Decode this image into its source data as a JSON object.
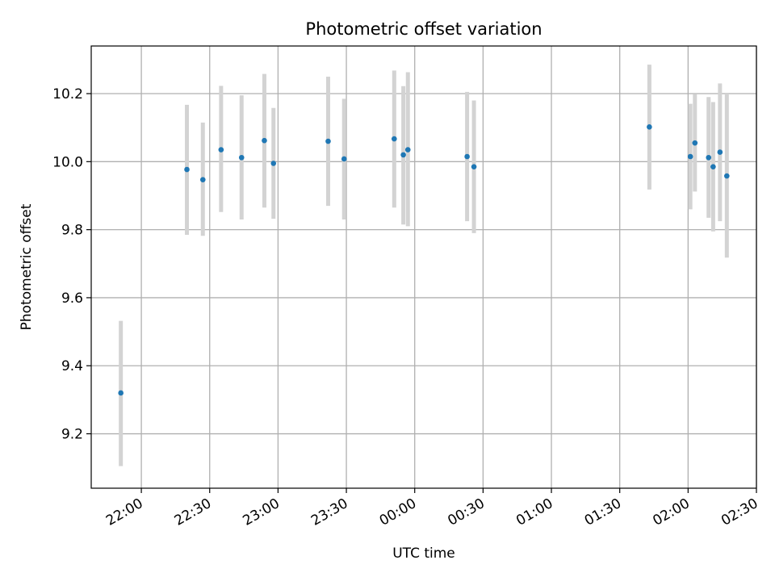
{
  "chart_data": {
    "type": "scatter",
    "title": "Photometric offset variation",
    "xlabel": "UTC time",
    "ylabel": "Photometric offset",
    "grid": true,
    "xlim": [
      "21:38",
      "02:30"
    ],
    "ylim": [
      9.04,
      10.34
    ],
    "x_ticks": [
      "22:00",
      "22:30",
      "23:00",
      "23:30",
      "00:00",
      "00:30",
      "01:00",
      "01:30",
      "02:00",
      "02:30"
    ],
    "y_ticks": [
      "9.2",
      "9.4",
      "9.6",
      "9.8",
      "10.0",
      "10.2"
    ],
    "colors": {
      "point": "#1f77b4",
      "errorbar": "#d3d3d3",
      "grid": "#b0b0b0"
    },
    "points": [
      {
        "x": "21:51",
        "y": 9.32,
        "ylow": 9.105,
        "yhigh": 9.532
      },
      {
        "x": "22:20",
        "y": 9.977,
        "ylow": 9.785,
        "yhigh": 10.167
      },
      {
        "x": "22:27",
        "y": 9.947,
        "ylow": 9.782,
        "yhigh": 10.115
      },
      {
        "x": "22:35",
        "y": 10.035,
        "ylow": 9.852,
        "yhigh": 10.223
      },
      {
        "x": "22:44",
        "y": 10.012,
        "ylow": 9.83,
        "yhigh": 10.195
      },
      {
        "x": "22:54",
        "y": 10.062,
        "ylow": 9.865,
        "yhigh": 10.258
      },
      {
        "x": "22:58",
        "y": 9.995,
        "ylow": 9.832,
        "yhigh": 10.158
      },
      {
        "x": "23:22",
        "y": 10.06,
        "ylow": 9.87,
        "yhigh": 10.25
      },
      {
        "x": "23:29",
        "y": 10.008,
        "ylow": 9.83,
        "yhigh": 10.185
      },
      {
        "x": "23:51",
        "y": 10.067,
        "ylow": 9.865,
        "yhigh": 10.268
      },
      {
        "x": "23:55",
        "y": 10.02,
        "ylow": 9.815,
        "yhigh": 10.222
      },
      {
        "x": "23:57",
        "y": 10.035,
        "ylow": 9.81,
        "yhigh": 10.263
      },
      {
        "x": "00:23",
        "y": 10.015,
        "ylow": 9.825,
        "yhigh": 10.205
      },
      {
        "x": "00:26",
        "y": 9.985,
        "ylow": 9.79,
        "yhigh": 10.18
      },
      {
        "x": "01:43",
        "y": 10.102,
        "ylow": 9.918,
        "yhigh": 10.285
      },
      {
        "x": "02:01",
        "y": 10.015,
        "ylow": 9.86,
        "yhigh": 10.17
      },
      {
        "x": "02:03",
        "y": 10.055,
        "ylow": 9.912,
        "yhigh": 10.198
      },
      {
        "x": "02:09",
        "y": 10.012,
        "ylow": 9.835,
        "yhigh": 10.19
      },
      {
        "x": "02:11",
        "y": 9.985,
        "ylow": 9.795,
        "yhigh": 10.175
      },
      {
        "x": "02:14",
        "y": 10.028,
        "ylow": 9.825,
        "yhigh": 10.23
      },
      {
        "x": "02:17",
        "y": 9.958,
        "ylow": 9.718,
        "yhigh": 10.2
      }
    ]
  }
}
